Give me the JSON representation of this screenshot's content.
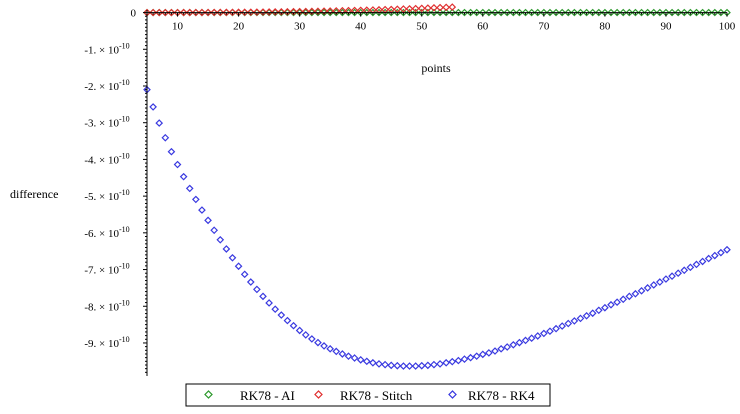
{
  "chart_data": {
    "type": "scatter",
    "title": "",
    "xlabel": "points",
    "ylabel": "difference",
    "xlim": [
      5,
      100
    ],
    "ylim": [
      -9.9e-10,
      7e-12
    ],
    "x_ticks": [
      10,
      20,
      30,
      40,
      50,
      60,
      70,
      80,
      90,
      100
    ],
    "y_tick_labels": [
      {
        "value": 0,
        "label": "0"
      },
      {
        "value": -1e-10,
        "label": "-1. × 10",
        "exp": "-10"
      },
      {
        "value": -2e-10,
        "label": "-2. × 10",
        "exp": "-10"
      },
      {
        "value": -3e-10,
        "label": "-3. × 10",
        "exp": "-10"
      },
      {
        "value": -4e-10,
        "label": "-4. × 10",
        "exp": "-10"
      },
      {
        "value": -5e-10,
        "label": "-5. × 10",
        "exp": "-10"
      },
      {
        "value": -6e-10,
        "label": "-6. × 10",
        "exp": "-10"
      },
      {
        "value": -7e-10,
        "label": "-7. × 10",
        "exp": "-10"
      },
      {
        "value": -8e-10,
        "label": "-8. × 10",
        "exp": "-10"
      },
      {
        "value": -9e-10,
        "label": "-9. × 10",
        "exp": "-10"
      }
    ],
    "grid": false,
    "legend_position": "bottom",
    "series": [
      {
        "name": "RK78 - AI",
        "color": "#2e9a2e",
        "x": [
          5,
          6,
          7,
          8,
          9,
          10,
          11,
          12,
          13,
          14,
          15,
          16,
          17,
          18,
          19,
          20,
          21,
          22,
          23,
          24,
          25,
          26,
          27,
          28,
          29,
          30,
          31,
          32,
          33,
          34,
          35,
          36,
          37,
          38,
          39,
          40,
          41,
          42,
          43,
          44,
          45,
          46,
          47,
          48,
          49,
          50,
          51,
          52,
          53,
          54,
          55,
          56,
          57,
          58,
          59,
          60,
          61,
          62,
          63,
          64,
          65,
          66,
          67,
          68,
          69,
          70,
          71,
          72,
          73,
          74,
          75,
          76,
          77,
          78,
          79,
          80,
          81,
          82,
          83,
          84,
          85,
          86,
          87,
          88,
          89,
          90,
          91,
          92,
          93,
          94,
          95,
          96,
          97,
          98,
          99,
          100
        ],
        "y": [
          0,
          0,
          0,
          0,
          0,
          0,
          0,
          0,
          0,
          0,
          0,
          0,
          0,
          0,
          0,
          0,
          0,
          0,
          0,
          0,
          0,
          0,
          0,
          0,
          0,
          0,
          0,
          0,
          0,
          0,
          0,
          0,
          0,
          0,
          0,
          0,
          0,
          0,
          0,
          0,
          0,
          0,
          0,
          0,
          0,
          0,
          0,
          0,
          0,
          0,
          0,
          0,
          0,
          0,
          0,
          0,
          0,
          0,
          0,
          0,
          0,
          0,
          0,
          0,
          0,
          0,
          0,
          0,
          0,
          0,
          0,
          0,
          0,
          0,
          0,
          0,
          0,
          0,
          0,
          0,
          0,
          0,
          0,
          0,
          0,
          0,
          0,
          0,
          0,
          0,
          0,
          0,
          0,
          0,
          0,
          0
        ]
      },
      {
        "name": "RK78 - Stitch",
        "color": "#e03030",
        "x": [
          5,
          6,
          7,
          8,
          9,
          10,
          11,
          12,
          13,
          14,
          15,
          16,
          17,
          18,
          19,
          20,
          21,
          22,
          23,
          24,
          25,
          26,
          27,
          28,
          29,
          30,
          31,
          32,
          33,
          34,
          35,
          36,
          37,
          38,
          39,
          40,
          41,
          42,
          43,
          44,
          45,
          46,
          47,
          48,
          49,
          50,
          51,
          52,
          53,
          54,
          55
        ],
        "y": [
          0,
          0,
          0,
          0,
          0,
          0,
          1e-13,
          1e-13,
          2e-13,
          2e-13,
          3e-13,
          4e-13,
          5e-13,
          6e-13,
          7e-13,
          8e-13,
          9e-13,
          1.1e-12,
          1.2e-12,
          1.4e-12,
          1.6e-12,
          1.8e-12,
          2e-12,
          2.2e-12,
          2.5e-12,
          2.7e-12,
          3e-12,
          3.3e-12,
          3.6e-12,
          3.9e-12,
          4.2e-12,
          4.6e-12,
          5e-12,
          5.4e-12,
          5.8e-12,
          6.2e-12,
          6.6e-12,
          7.1e-12,
          7.6e-12,
          8.1e-12,
          8.6e-12,
          9.1e-12,
          9.7e-12,
          1.03e-11,
          1.09e-11,
          1.15e-11,
          1.22e-11,
          1.29e-11,
          1.36e-11,
          1.43e-11,
          1.5e-11
        ]
      },
      {
        "name": "RK78 - RK4",
        "color": "#3a3ae0",
        "x": [
          5,
          6,
          7,
          8,
          9,
          10,
          11,
          12,
          13,
          14,
          15,
          16,
          17,
          18,
          19,
          20,
          21,
          22,
          23,
          24,
          25,
          26,
          27,
          28,
          29,
          30,
          31,
          32,
          33,
          34,
          35,
          36,
          37,
          38,
          39,
          40,
          41,
          42,
          43,
          44,
          45,
          46,
          47,
          48,
          49,
          50,
          51,
          52,
          53,
          54,
          55,
          56,
          57,
          58,
          59,
          60,
          61,
          62,
          63,
          64,
          65,
          66,
          67,
          68,
          69,
          70,
          71,
          72,
          73,
          74,
          75,
          76,
          77,
          78,
          79,
          80,
          81,
          82,
          83,
          84,
          85,
          86,
          87,
          88,
          89,
          90,
          91,
          92,
          93,
          94,
          95,
          96,
          97,
          98,
          99,
          100
        ],
        "y": [
          -2.1e-10,
          -2.57e-10,
          -3.01e-10,
          -3.41e-10,
          -3.79e-10,
          -4.14e-10,
          -4.47e-10,
          -4.79e-10,
          -5.09e-10,
          -5.38e-10,
          -5.66e-10,
          -5.93e-10,
          -6.19e-10,
          -6.44e-10,
          -6.68e-10,
          -6.91e-10,
          -7.13e-10,
          -7.34e-10,
          -7.54e-10,
          -7.73e-10,
          -7.91e-10,
          -8.08e-10,
          -8.24e-10,
          -8.39e-10,
          -8.53e-10,
          -8.66e-10,
          -8.78e-10,
          -8.89e-10,
          -8.99e-10,
          -9.08e-10,
          -9.16e-10,
          -9.23e-10,
          -9.3e-10,
          -9.36e-10,
          -9.41e-10,
          -9.46e-10,
          -9.5e-10,
          -9.54e-10,
          -9.57e-10,
          -9.59e-10,
          -9.61e-10,
          -9.62e-10,
          -9.63e-10,
          -9.63e-10,
          -9.63e-10,
          -9.62e-10,
          -9.61e-10,
          -9.59e-10,
          -9.57e-10,
          -9.54e-10,
          -9.51e-10,
          -9.48e-10,
          -9.44e-10,
          -9.4e-10,
          -9.36e-10,
          -9.31e-10,
          -9.27e-10,
          -9.22e-10,
          -9.16e-10,
          -9.11e-10,
          -9.05e-10,
          -8.99e-10,
          -8.93e-10,
          -8.87e-10,
          -8.81e-10,
          -8.74e-10,
          -8.68e-10,
          -8.61e-10,
          -8.54e-10,
          -8.47e-10,
          -8.4e-10,
          -8.33e-10,
          -8.26e-10,
          -8.19e-10,
          -8.11e-10,
          -8.04e-10,
          -7.96e-10,
          -7.89e-10,
          -7.81e-10,
          -7.73e-10,
          -7.66e-10,
          -7.58e-10,
          -7.5e-10,
          -7.42e-10,
          -7.34e-10,
          -7.26e-10,
          -7.18e-10,
          -7.1e-10,
          -7.02e-10,
          -6.94e-10,
          -6.86e-10,
          -6.78e-10,
          -6.7e-10,
          -6.62e-10,
          -6.54e-10,
          -6.46e-10
        ]
      }
    ]
  }
}
